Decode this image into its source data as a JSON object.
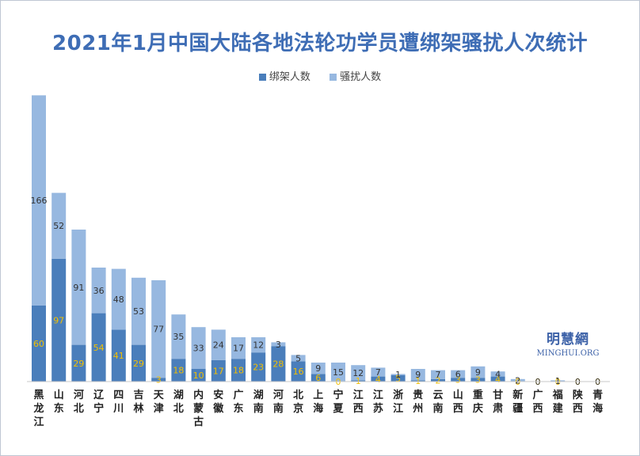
{
  "colors": {
    "kidnap": "#4a7ebb",
    "harass": "#97b8e0",
    "title": "#3e6db5",
    "kidnap_label": "#f3c000",
    "harass_label": "#333333"
  },
  "chart_data": {
    "type": "bar",
    "stacked": true,
    "title": "2021年1月中国大陆各地法轮功学员遭绑架骚扰人次统计",
    "categories": [
      "黑龙江",
      "山东",
      "河北",
      "辽宁",
      "四川",
      "吉林",
      "天津",
      "湖北",
      "内蒙古",
      "安徽",
      "广东",
      "湖南",
      "河南",
      "北京",
      "上海",
      "宁夏",
      "江西",
      "江苏",
      "浙江",
      "贵州",
      "云南",
      "山西",
      "重庆",
      "甘肃",
      "新疆",
      "广西",
      "福建",
      "陕西",
      "青海"
    ],
    "series": [
      {
        "name": "绑架人数",
        "values": [
          60,
          97,
          29,
          54,
          41,
          29,
          3,
          18,
          10,
          17,
          18,
          23,
          28,
          16,
          6,
          0,
          1,
          4,
          5,
          1,
          2,
          3,
          3,
          4,
          0,
          0,
          0,
          0,
          0
        ]
      },
      {
        "name": "骚扰人数",
        "values": [
          166,
          52,
          91,
          36,
          48,
          53,
          77,
          35,
          33,
          24,
          17,
          12,
          3,
          5,
          9,
          15,
          12,
          7,
          1,
          9,
          7,
          6,
          9,
          4,
          2,
          0,
          1,
          0,
          0
        ]
      }
    ],
    "legend_position": "top",
    "grid": false,
    "ylim": [
      0,
      230
    ]
  },
  "watermark": {
    "cn": "明慧網",
    "en": "MINGHUI.ORG"
  }
}
